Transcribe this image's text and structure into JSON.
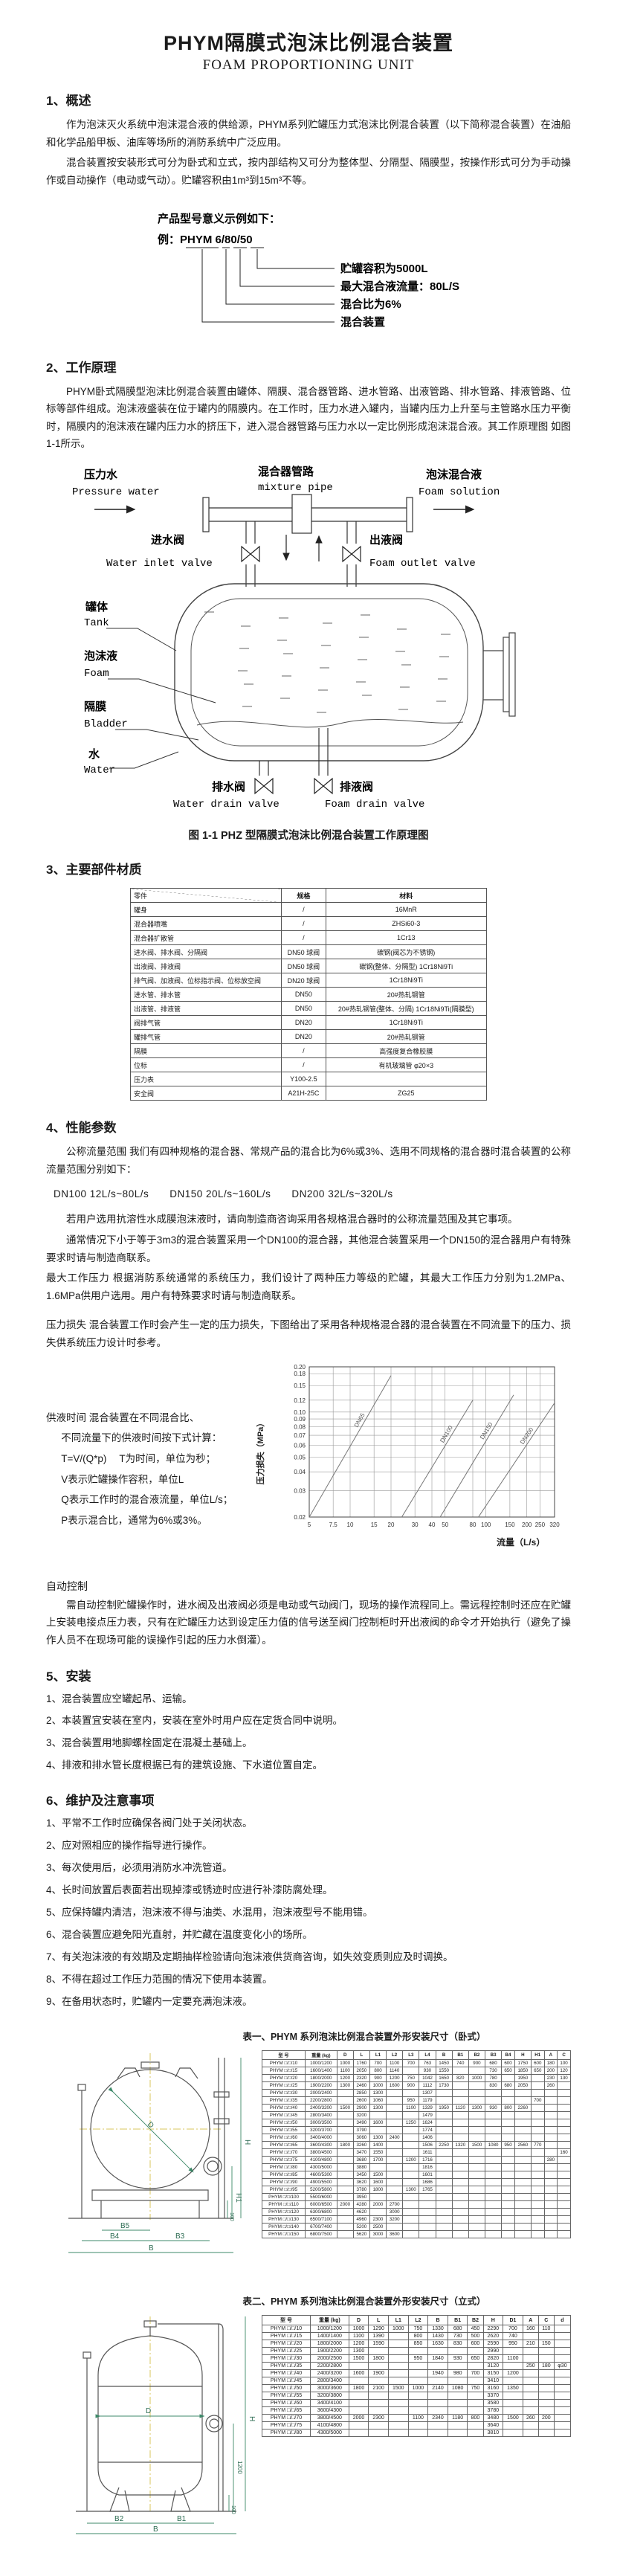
{
  "page": {
    "title": "PHYM隔膜式泡沫比例混合装置",
    "subtitle": "FOAM PROPORTIONING UNIT"
  },
  "s1": {
    "heading": "1、概述",
    "p1": "作为泡沫灭火系统中泡沫混合液的供给源，PHYM系列贮罐压力式泡沫比例混合装置（以下简称混合装置）在油船和化学品船甲板、油库等场所的消防系统中广泛应用。",
    "p2": "混合装置按安装形式可分为卧式和立式，按内部结构又可分为整体型、分隔型、隔膜型，按操作形式可分为手动操作或自动操作（电动或气动）。贮罐容积由1m³到15m³不等。"
  },
  "model_example": {
    "intro1": "产品型号意义示例如下：",
    "intro2": "例：PHYM 6/80/50",
    "labels": [
      "贮罐容积为5000L",
      "最大混合液流量：80L/S",
      "混合比为6%",
      "混合装置"
    ]
  },
  "s2": {
    "heading": "2、工作原理",
    "p1": "PHYM卧式隔膜型泡沫比例混合装置由罐体、隔膜、混合器管路、进水管路、出液管路、排水管路、排液管路、位标等部件组成。泡沫液盛装在位于罐内的隔膜内。在工作时，压力水进入罐内，当罐内压力上升至与主管路水压力平衡时，隔膜内的泡沫液在罐内压力水的挤压下，进入混合器管路与压力水以一定比例形成泡沫混合液。其工作原理图 如图1-1所示。",
    "figure_caption": "图 1-1 PHZ 型隔膜式泡沫比例混合装置工作原理图"
  },
  "diagram": {
    "pressure_water_cn": "压力水",
    "pressure_water_en": "Pressure water",
    "mixture_pipe_cn": "混合器管路",
    "mixture_pipe_en": "mixture pipe",
    "foam_solution_cn": "泡沫混合液",
    "foam_solution_en": "Foam solution",
    "water_inlet_cn": "进水阀",
    "water_inlet_en": "Water inlet valve",
    "foam_outlet_cn": "出液阀",
    "foam_outlet_en": "Foam outlet valve",
    "tank_cn": "罐体",
    "tank_en": "Tank",
    "foam_cn": "泡沫液",
    "foam_en": "Foam",
    "bladder_cn": "隔膜",
    "bladder_en": "Bladder",
    "water_cn": "水",
    "water_en": "Water",
    "water_drain_cn": "排水阀",
    "water_drain_en": "Water drain valve",
    "foam_drain_cn": "排液阀",
    "foam_drain_en": "Foam drain valve"
  },
  "s3": {
    "heading": "3、主要部件材质"
  },
  "materials_table": {
    "columns": [
      "零件",
      "规格",
      "材料"
    ],
    "rows": [
      [
        "罐身",
        "/",
        "16MnR"
      ],
      [
        "混合器喷嘴",
        "/",
        "ZHSi60-3"
      ],
      [
        "混合器扩散管",
        "/",
        "1Cr13"
      ],
      [
        "进水阀、排水阀、分隔阀",
        "DN50 球阀",
        "碳钢(阀芯为不锈钢)"
      ],
      [
        "出液阀、排液阀",
        "DN50 球阀",
        "碳钢(整体、分隔型) 1Cr18Ni9Ti"
      ],
      [
        "排气阀、加液阀、位标指示阀、位标放空阀",
        "DN20 球阀",
        "1Cr18Ni9Ti"
      ],
      [
        "进水管、排水管",
        "DN50",
        "20#热轧钢管"
      ],
      [
        "出液管、排液管",
        "DN50",
        "20#热轧钢管(整体、分隔) 1Cr18Ni9Ti(隔膜型)"
      ],
      [
        "阀排气管",
        "DN20",
        "1Cr18Ni9Ti"
      ],
      [
        "罐排气管",
        "DN20",
        "20#热轧钢管"
      ],
      [
        "隔膜",
        "/",
        "高强度复合橡胶膜"
      ],
      [
        "位标",
        "/",
        "有机玻璃管 φ20×3"
      ],
      [
        "压力表",
        "Y100-2.5",
        ""
      ],
      [
        "安全阀",
        "A21H-25C",
        "ZG25"
      ]
    ]
  },
  "s4": {
    "heading": "4、性能参数",
    "p1": "公称流量范围  我们有四种规格的混合器、常规产品的混合比为6%或3%、选用不同规格的混合器时混合装置的公称流量范围分别如下：",
    "flow_line": "DN100  12L/s~80L/s　　DN150  20L/s~160L/s　　DN200  32L/s~320L/s",
    "p2": "若用户选用抗溶性水成膜泡沫液时，请向制造商咨询采用各规格混合器时的公称流量范围及其它事项。",
    "p3": "通常情况下小于等于3m3的混合装置采用一个DN100的混合器，其他混合装置采用一个DN150的混合器用户有特殊要求时请与制造商联系。",
    "p4": "最大工作压力 根据消防系统通常的系统压力，我们设计了两种压力等级的贮罐，其最大工作压力分别为1.2MPa、1.6MPa供用户选用。用户有特殊要求时请与制造商联系。",
    "p5": "压力损失  混合装置工作时会产生一定的压力损失，下图给出了采用各种规格混合器的混合装置在不同流量下的压力、损失供系统压力设计时参考。",
    "supply_lines": [
      "供液时间  混合装置在不同混合比、",
      "不同流量下的供液时间按下式计算：",
      "T=V/(Q*p)　 T为时间，单位为秒；",
      "V表示贮罐操作容积，单位L",
      "Q表示工作时的混合液流量，单位L/s；",
      "P表示混合比，通常为6%或3%。"
    ],
    "auto_heading": "自动控制",
    "auto_p": "需自动控制贮罐操作时，进水阀及出液阀必须是电动或气动阀门，现场的操作流程同上。需远程控制时还应在贮罐上安装电接点压力表，只有在贮罐压力达到设定压力值的信号送至阀门控制柜时开出液阀的命令才开始执行（避免了操作人员不在现场可能的误操作引起的压力水倒灌）。"
  },
  "chart_data": {
    "type": "line",
    "title": "",
    "xlabel": "流量（L/s）",
    "ylabel": "压力损失（MPa）",
    "x_scale": "log",
    "y_scale": "log",
    "grid": true,
    "x_ticks": [
      "5",
      "7.5",
      "10",
      "15",
      "20",
      "30",
      "40",
      "50",
      "80",
      "100",
      "150",
      "200",
      "250",
      "320"
    ],
    "y_ticks": [
      "0.02",
      "0.03",
      "0.04",
      "0.05",
      "0.06",
      "0.07",
      "0.08",
      "0.09",
      "0.10",
      "0.12",
      "0.15",
      "0.18",
      "0.20"
    ],
    "xlim": [
      5,
      320
    ],
    "ylim": [
      0.02,
      0.2
    ],
    "series": [
      {
        "name": "DN65",
        "points": [
          [
            5,
            0.02
          ],
          [
            20,
            0.175
          ]
        ]
      },
      {
        "name": "DN100",
        "points": [
          [
            24,
            0.02
          ],
          [
            80,
            0.12
          ]
        ]
      },
      {
        "name": "DN150",
        "points": [
          [
            46,
            0.02
          ],
          [
            160,
            0.13
          ]
        ]
      },
      {
        "name": "DN200",
        "points": [
          [
            88,
            0.02
          ],
          [
            320,
            0.115
          ]
        ]
      }
    ]
  },
  "s5": {
    "heading": "5、安装",
    "items": [
      "1、混合装置应空罐起吊、运输。",
      "2、本装置宜安装在室内，安装在室外时用户应在定货合同中说明。",
      "3、混合装置用地脚螺栓固定在混凝土基础上。",
      "4、排液和排水管长度根据已有的建筑设施、下水道位置自定。"
    ]
  },
  "s6": {
    "heading": "6、维护及注意事项",
    "items": [
      "1、平常不工作时应确保各阀门处于关闭状态。",
      "2、应对照相应的操作指导进行操作。",
      "3、每次使用后，必须用消防水冲洗管道。",
      "4、长时间放置后表面若出现掉漆或锈迹时应进行补漆防腐处理。",
      "5、应保持罐内清洁，泡沫液不得与油类、水混用，泡沫液型号不能用错。",
      "6、混合装置应避免阳光直射，并贮藏在温度变化小的场所。",
      "7、有关泡沫液的有效期及定期抽样检验请向泡沫液供货商咨询，如失效变质则应及时调换。",
      "8、不得在超过工作压力范围的情况下使用本装置。",
      "9、在备用状态时，贮罐内一定要充满泡沫液。"
    ]
  },
  "drawing1": {
    "dims": {
      "D": "D",
      "B5": "B5",
      "B4": "B4",
      "B3": "B3",
      "B": "B",
      "H": "H",
      "H1": "H1",
      "h100": "100"
    }
  },
  "drawing2": {
    "dims": {
      "D": "D",
      "B2": "B2",
      "B1": "B1",
      "B": "B",
      "H": "H",
      "v1200": "1200",
      "h100": "100"
    }
  },
  "table1": {
    "caption": "表一、PHYM 系列泡沫比例混合装置外形安装尺寸（卧式）",
    "columns": [
      "型  号",
      "重量 (kg)",
      "D",
      "L",
      "L1",
      "L2",
      "L3",
      "L4",
      "B",
      "B1",
      "B2",
      "B3",
      "B4",
      "H",
      "H1",
      "A",
      "C"
    ],
    "rows": [
      [
        "PHYM □/□/10",
        "1000/1200",
        "1000",
        "1760",
        "700",
        "1100",
        "700",
        "763",
        "1450",
        "740",
        "900",
        "680",
        "600",
        "1750",
        "600",
        "180",
        "100"
      ],
      [
        "PHYM □/□/15",
        "1600/1400",
        "1100",
        "2050",
        "800",
        "1140",
        "",
        "930",
        "1550",
        "",
        "",
        "730",
        "650",
        "1850",
        "650",
        "200",
        "120"
      ],
      [
        "PHYM □/□/20",
        "1800/2000",
        "1200",
        "2320",
        "900",
        "1200",
        "750",
        "1042",
        "1650",
        "820",
        "1000",
        "780",
        "",
        "1950",
        "",
        "230",
        "130"
      ],
      [
        "PHYM □/□/25",
        "1900/2200",
        "1300",
        "2460",
        "1000",
        "1600",
        "900",
        "1112",
        "1730",
        "",
        "",
        "830",
        "680",
        "2050",
        "",
        "260",
        ""
      ],
      [
        "PHYM □/□/30",
        "2000/2400",
        "",
        "2850",
        "1300",
        "",
        "",
        "1307",
        "",
        "",
        "",
        "",
        "",
        "",
        "",
        "",
        ""
      ],
      [
        "PHYM □/□/35",
        "2200/2800",
        "",
        "2600",
        "1060",
        "",
        "950",
        "1179",
        "",
        "",
        "",
        "",
        "",
        "",
        "700",
        "",
        ""
      ],
      [
        "PHYM □/□/40",
        "2400/3200",
        "1500",
        "2900",
        "1300",
        "",
        "1100",
        "1329",
        "1950",
        "1120",
        "1300",
        "930",
        "800",
        "2260",
        "",
        "",
        ""
      ],
      [
        "PHYM □/□/45",
        "2800/3400",
        "",
        "3200",
        "",
        "",
        "",
        "1479",
        "",
        "",
        "",
        "",
        "",
        "",
        "",
        "",
        ""
      ],
      [
        "PHYM □/□/50",
        "3000/3500",
        "",
        "3490",
        "1600",
        "",
        "1250",
        "1624",
        "",
        "",
        "",
        "",
        "",
        "",
        "",
        "",
        ""
      ],
      [
        "PHYM □/□/55",
        "3200/3700",
        "",
        "3790",
        "",
        "",
        "",
        "1774",
        "",
        "",
        "",
        "",
        "",
        "",
        "",
        "",
        ""
      ],
      [
        "PHYM □/□/60",
        "3400/4000",
        "",
        "3060",
        "1300",
        "2400",
        "",
        "1406",
        "",
        "",
        "",
        "",
        "",
        "",
        "",
        "",
        ""
      ],
      [
        "PHYM □/□/65",
        "3600/4300",
        "1800",
        "3260",
        "1400",
        "",
        "",
        "1506",
        "2250",
        "1320",
        "1500",
        "1080",
        "950",
        "2560",
        "770",
        "",
        ""
      ],
      [
        "PHYM □/□/70",
        "3800/4500",
        "",
        "3470",
        "1550",
        "",
        "",
        "1611",
        "",
        "",
        "",
        "",
        "",
        "",
        "",
        "",
        "160"
      ],
      [
        "PHYM □/□/75",
        "4100/4800",
        "",
        "3680",
        "1700",
        "",
        "1200",
        "1716",
        "",
        "",
        "",
        "",
        "",
        "",
        "",
        "280",
        ""
      ],
      [
        "PHYM □/□/80",
        "4300/5000",
        "",
        "3880",
        "",
        "",
        "",
        "1816",
        "",
        "",
        "",
        "",
        "",
        "",
        "",
        "",
        ""
      ],
      [
        "PHYM □/□/85",
        "4600/5300",
        "",
        "3450",
        "1500",
        "",
        "",
        "1601",
        "",
        "",
        "",
        "",
        "",
        "",
        "",
        "",
        ""
      ],
      [
        "PHYM □/□/90",
        "4900/5500",
        "",
        "3620",
        "1600",
        "",
        "",
        "1686",
        "",
        "",
        "",
        "",
        "",
        "",
        "",
        "",
        ""
      ],
      [
        "PHYM □/□/95",
        "5200/5800",
        "",
        "3780",
        "1800",
        "",
        "1300",
        "1765",
        "",
        "",
        "",
        "",
        "",
        "",
        "",
        "",
        ""
      ],
      [
        "PHYM □/□/100",
        "5500/6000",
        "",
        "3950",
        "",
        "",
        "",
        "",
        "",
        "",
        "",
        "",
        "",
        "",
        "",
        "",
        ""
      ],
      [
        "PHYM □/□/110",
        "6000/6500",
        "2000",
        "4280",
        "2000",
        "2700",
        "",
        "",
        "",
        "",
        "",
        "",
        "",
        "",
        "",
        "",
        ""
      ],
      [
        "PHYM □/□/120",
        "6300/6800",
        "",
        "4620",
        "",
        "3000",
        "",
        "",
        "",
        "",
        "",
        "",
        "",
        "",
        "",
        "",
        ""
      ],
      [
        "PHYM □/□/130",
        "6500/7100",
        "",
        "4960",
        "2300",
        "3200",
        "",
        "",
        "",
        "",
        "",
        "",
        "",
        "",
        "",
        "",
        ""
      ],
      [
        "PHYM □/□/140",
        "6700/7400",
        "",
        "5200",
        "2500",
        "",
        "",
        "",
        "",
        "",
        "",
        "",
        "",
        "",
        "",
        "",
        ""
      ],
      [
        "PHYM □/□/150",
        "6800/7500",
        "",
        "5620",
        "3000",
        "3600",
        "",
        "",
        "",
        "",
        "",
        "",
        "",
        "",
        "",
        "",
        ""
      ]
    ]
  },
  "table2": {
    "caption": "表二、PHYM 系列泡沫比例混合装置外形安装尺寸（立式）",
    "columns": [
      "型  号",
      "重量 (kg)",
      "D",
      "L",
      "L1",
      "L2",
      "B",
      "B1",
      "B2",
      "H",
      "D1",
      "A",
      "C",
      "d"
    ],
    "rows": [
      [
        "PHYM □/□/10",
        "1000/1200",
        "1000",
        "1290",
        "1000",
        "750",
        "1330",
        "680",
        "450",
        "2290",
        "700",
        "160",
        "110",
        ""
      ],
      [
        "PHYM □/□/15",
        "1400/1400",
        "1100",
        "1390",
        "",
        "800",
        "1430",
        "730",
        "500",
        "2620",
        "740",
        "",
        "",
        ""
      ],
      [
        "PHYM □/□/20",
        "1800/2000",
        "1200",
        "1590",
        "",
        "850",
        "1630",
        "830",
        "600",
        "2590",
        "950",
        "210",
        "150",
        ""
      ],
      [
        "PHYM □/□/25",
        "1900/2200",
        "1300",
        "",
        "",
        "",
        "",
        "",
        "",
        "2990",
        "",
        "",
        "",
        ""
      ],
      [
        "PHYM □/□/30",
        "2000/2500",
        "1500",
        "1800",
        "",
        "950",
        "1840",
        "930",
        "650",
        "2820",
        "1100",
        "",
        "",
        ""
      ],
      [
        "PHYM □/□/35",
        "2200/2800",
        "",
        "",
        "",
        "",
        "",
        "",
        "",
        "3120",
        "",
        "250",
        "180",
        "φ30"
      ],
      [
        "PHYM □/□/40",
        "2400/3200",
        "1600",
        "1900",
        "",
        "",
        "1940",
        "980",
        "700",
        "3150",
        "1200",
        "",
        "",
        ""
      ],
      [
        "PHYM □/□/45",
        "2800/3400",
        "",
        "",
        "",
        "",
        "",
        "",
        "",
        "3410",
        "",
        "",
        "",
        ""
      ],
      [
        "PHYM □/□/50",
        "3000/3600",
        "1800",
        "2100",
        "1500",
        "1000",
        "2140",
        "1080",
        "750",
        "3160",
        "1350",
        "",
        "",
        ""
      ],
      [
        "PHYM □/□/55",
        "3200/3800",
        "",
        "",
        "",
        "",
        "",
        "",
        "",
        "3370",
        "",
        "",
        "",
        ""
      ],
      [
        "PHYM □/□/60",
        "3400/4100",
        "",
        "",
        "",
        "",
        "",
        "",
        "",
        "3580",
        "",
        "",
        "",
        ""
      ],
      [
        "PHYM □/□/65",
        "3600/4300",
        "",
        "",
        "",
        "",
        "",
        "",
        "",
        "3780",
        "",
        "",
        "",
        ""
      ],
      [
        "PHYM □/□/70",
        "3800/4500",
        "2000",
        "2300",
        "",
        "1100",
        "2340",
        "1180",
        "800",
        "3480",
        "1500",
        "260",
        "200",
        ""
      ],
      [
        "PHYM □/□/75",
        "4100/4800",
        "",
        "",
        "",
        "",
        "",
        "",
        "",
        "3640",
        "",
        "",
        "",
        ""
      ],
      [
        "PHYM □/□/80",
        "4300/5000",
        "",
        "",
        "",
        "",
        "",
        "",
        "",
        "3810",
        "",
        "",
        "",
        ""
      ]
    ]
  }
}
